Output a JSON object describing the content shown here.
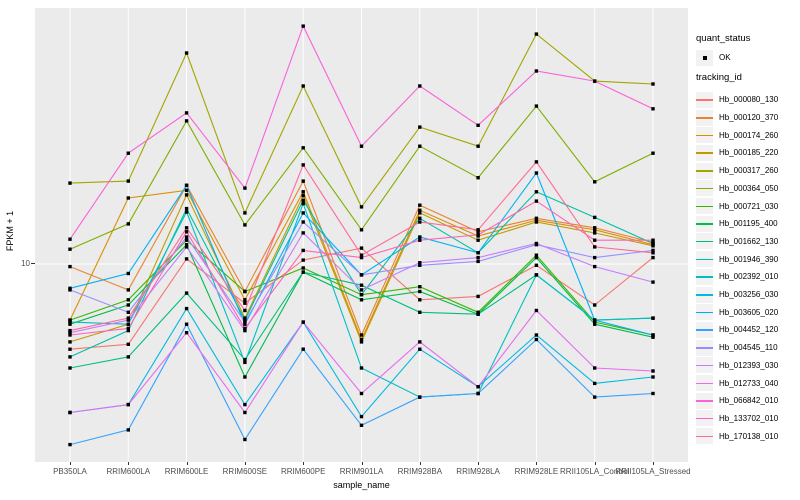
{
  "chart_data": {
    "type": "line",
    "xlabel": "sample_name",
    "ylabel": "FPKM + 1",
    "y_scale": "log10",
    "y_tick_label": "10",
    "y_tick_value": 10,
    "grid": true,
    "categories": [
      "PB350LA",
      "RRIM600LA",
      "RRIM600LE",
      "RRIM600SE",
      "RRIM600PE",
      "RRIM901LA",
      "RRIM928BA",
      "RRIM928LA",
      "RRIM928LE",
      "RRII105LA_Control",
      "RRII105LA_Stressed"
    ],
    "series": [
      {
        "name": "Hb_000080_130",
        "color": "#F8766D",
        "values": [
          5.2,
          5.4,
          10.4,
          7.4,
          10.3,
          11.3,
          7.6,
          7.8,
          9.9,
          7.3,
          10.5
        ]
      },
      {
        "name": "Hb_000120_370",
        "color": "#EA8331",
        "values": [
          9.8,
          8.2,
          18.3,
          8.1,
          18.9,
          5.8,
          15.7,
          12.8,
          14.2,
          13.2,
          11.8
        ]
      },
      {
        "name": "Hb_000174_260",
        "color": "#D89000",
        "values": [
          6.5,
          16.6,
          17.6,
          7.6,
          17.4,
          5.6,
          15.1,
          12.4,
          14.0,
          13.0,
          11.6
        ]
      },
      {
        "name": "Hb_000185_220",
        "color": "#C09B00",
        "values": [
          5.5,
          6.3,
          17.0,
          6.6,
          16.9,
          5.5,
          14.8,
          12.0,
          13.8,
          12.7,
          11.5
        ]
      },
      {
        "name": "Hb_000317_260",
        "color": "#A3A500",
        "values": [
          18.6,
          18.9,
          50.5,
          14.8,
          39.2,
          15.5,
          28.6,
          24.7,
          58.4,
          40.7,
          39.8
        ]
      },
      {
        "name": "Hb_000364_050",
        "color": "#7CAE00",
        "values": [
          11.2,
          13.6,
          30.0,
          13.5,
          24.4,
          13.0,
          24.7,
          19.4,
          33.6,
          18.8,
          23.4
        ]
      },
      {
        "name": "Hb_000721_030",
        "color": "#39B600",
        "values": [
          6.5,
          7.6,
          12.0,
          8.1,
          9.7,
          7.9,
          8.4,
          6.9,
          10.7,
          6.4,
          5.8
        ]
      },
      {
        "name": "Hb_001195_400",
        "color": "#00BB4E",
        "values": [
          6.3,
          7.3,
          11.6,
          4.2,
          9.4,
          7.6,
          8.1,
          6.8,
          10.5,
          6.3,
          5.7
        ]
      },
      {
        "name": "Hb_001662_130",
        "color": "#00BF7D",
        "values": [
          4.5,
          4.9,
          8.0,
          4.8,
          9.4,
          8.5,
          6.9,
          6.8,
          9.2,
          6.5,
          6.6
        ]
      },
      {
        "name": "Hb_001946_390",
        "color": "#00C1A3",
        "values": [
          4.9,
          6.0,
          15.3,
          6.5,
          16.3,
          7.9,
          14.2,
          10.9,
          17.4,
          14.3,
          11.7
        ]
      },
      {
        "name": "Hb_002392_010",
        "color": "#00BFC4",
        "values": [
          6.4,
          6.3,
          14.9,
          4.7,
          15.9,
          4.5,
          3.6,
          3.7,
          9.2,
          6.5,
          6.6
        ]
      },
      {
        "name": "Hb_003256_030",
        "color": "#00BAE0",
        "values": [
          3.2,
          3.4,
          7.1,
          3.4,
          6.4,
          3.1,
          5.2,
          3.9,
          5.8,
          4.0,
          4.2
        ]
      },
      {
        "name": "Hb_003605_020",
        "color": "#00B0F6",
        "values": [
          8.3,
          9.3,
          18.3,
          6.3,
          14.8,
          9.2,
          12.3,
          10.9,
          20.1,
          6.5,
          5.8
        ]
      },
      {
        "name": "Hb_004452_120",
        "color": "#35A2FF",
        "values": [
          2.5,
          2.8,
          6.3,
          2.6,
          5.2,
          2.9,
          3.6,
          3.7,
          5.6,
          3.6,
          3.7
        ]
      },
      {
        "name": "Hb_004545_110",
        "color": "#9590FF",
        "values": [
          8.2,
          6.9,
          12.3,
          6.4,
          13.8,
          9.2,
          9.9,
          10.2,
          11.6,
          10.5,
          11.1
        ]
      },
      {
        "name": "Hb_012393_030",
        "color": "#C77CFF",
        "values": [
          5.9,
          6.5,
          11.4,
          6.0,
          12.7,
          8.2,
          10.1,
          10.5,
          11.7,
          9.8,
          8.7
        ]
      },
      {
        "name": "Hb_012733_040",
        "color": "#E76BF3",
        "values": [
          3.2,
          3.4,
          5.9,
          3.2,
          6.4,
          3.7,
          5.5,
          3.9,
          7.0,
          4.5,
          4.4
        ]
      },
      {
        "name": "Hb_066842_010",
        "color": "#FA62DB",
        "values": [
          12.1,
          23.4,
          31.9,
          17.9,
          62.1,
          24.7,
          39.2,
          29.0,
          44.0,
          40.7,
          32.9
        ]
      },
      {
        "name": "Hb_133702_010",
        "color": "#FF62BC",
        "values": [
          5.8,
          6.1,
          12.8,
          6.1,
          11.1,
          10.5,
          12.0,
          12.5,
          16.2,
          12.0,
          12.0
        ]
      },
      {
        "name": "Hb_170138_010",
        "color": "#FF6A98",
        "values": [
          6.0,
          6.6,
          13.2,
          7.0,
          21.4,
          10.7,
          13.8,
          13.0,
          21.9,
          11.4,
          10.9
        ]
      }
    ],
    "legend": {
      "quant_status_title": "quant_status",
      "quant_ok_label": "OK",
      "tracking_id_title": "tracking_id",
      "position": "right"
    }
  },
  "colors": {
    "panel_background": "#EBEBEB",
    "gridline": "#FFFFFF",
    "point": "#000000",
    "tick_label": "#4D4D4D",
    "legend_key_background": "#F2F2F2"
  }
}
